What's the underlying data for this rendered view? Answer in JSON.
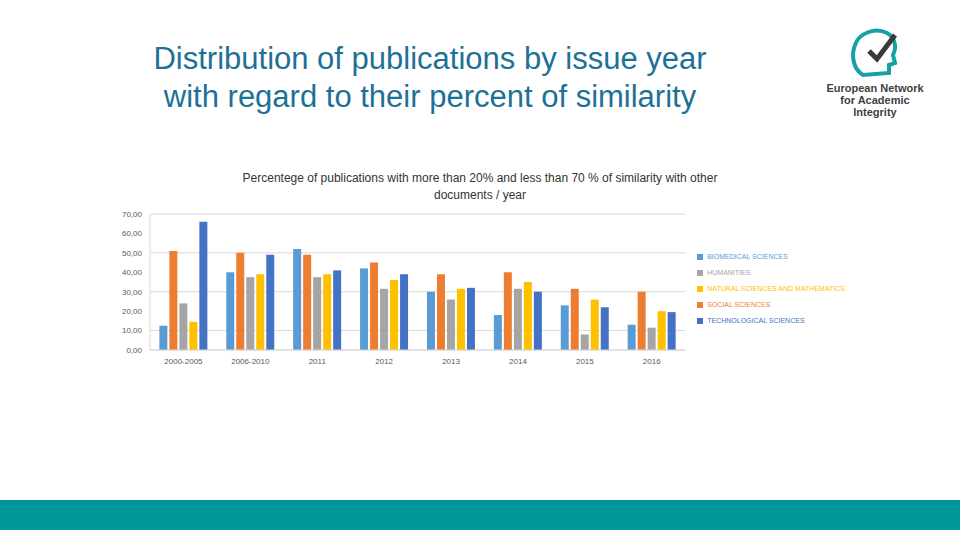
{
  "slide_title": [
    "Distribution of publications by issue year",
    "with regard to their percent of  similarity"
  ],
  "logo": [
    "European Network",
    "for Academic",
    "Integrity"
  ],
  "chart_data": {
    "type": "bar",
    "title": "Percentege of publications with more than 20% and less than 70 % of similarity with other documents / year",
    "categories": [
      "2000-2005",
      "2006-2010",
      "2011",
      "2012",
      "2013",
      "2014",
      "2015",
      "2016"
    ],
    "series": [
      {
        "name": "BIOMEDICAL SCIENCES",
        "color": "#5b9bd5",
        "values": [
          12.5,
          40,
          52,
          42,
          30,
          18,
          23,
          13
        ]
      },
      {
        "name": "SOCIAL SCIENCES",
        "color": "#ed7d31",
        "values": [
          51,
          50,
          49,
          45,
          39,
          40,
          31.5,
          30
        ]
      },
      {
        "name": "HUMANITIES",
        "color": "#a5a5a5",
        "values": [
          24,
          37.5,
          37.5,
          31.5,
          26,
          31.5,
          8,
          11.5
        ]
      },
      {
        "name": "NATURAL SCIENCES AND MATHEMATICS",
        "color": "#ffc000",
        "values": [
          14.5,
          39,
          39,
          36,
          31.5,
          35,
          26,
          20
        ]
      },
      {
        "name": "TECHNOLOGICAL SCIENCES",
        "color": "#4472c4",
        "values": [
          66,
          49,
          41,
          39,
          32,
          30,
          22,
          19.5
        ]
      }
    ],
    "ylim": [
      0,
      70
    ],
    "yticks": [
      {
        "value": 0,
        "label": "0,00"
      },
      {
        "value": 10,
        "label": "10,00"
      },
      {
        "value": 20,
        "label": "20,00"
      },
      {
        "value": 30,
        "label": "30,00"
      },
      {
        "value": 40,
        "label": "40,00"
      },
      {
        "value": 50,
        "label": "50,00"
      },
      {
        "value": 60,
        "label": "60,00"
      },
      {
        "value": 70,
        "label": "70,00"
      }
    ],
    "grid": true,
    "legend": "right"
  }
}
